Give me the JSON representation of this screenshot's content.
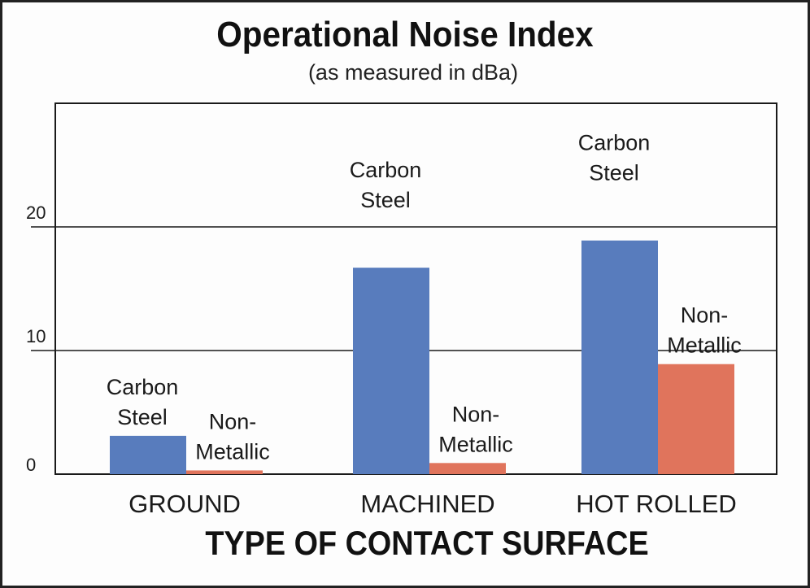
{
  "chart_data": {
    "type": "bar",
    "title": "Operational Noise Index",
    "subtitle": "(as measured in dBa)",
    "xlabel": "TYPE OF CONTACT SURFACE",
    "ylabel": "",
    "ylim": [
      0,
      30
    ],
    "yticks": [
      "0",
      "10",
      "20"
    ],
    "grid": true,
    "legend": "none",
    "categories": [
      "GROUND",
      "MACHINED",
      "HOT ROLLED"
    ],
    "series": [
      {
        "name": "Carbon Steel",
        "label_lines": [
          "Carbon",
          "Steel"
        ],
        "color": "#587CBD",
        "values": [
          3.1,
          16.7,
          18.9
        ]
      },
      {
        "name": "Non-Metallic",
        "label_lines": [
          "Non-",
          "Metallic"
        ],
        "color": "#E0745C",
        "values": [
          0.3,
          0.9,
          8.9
        ]
      }
    ]
  }
}
